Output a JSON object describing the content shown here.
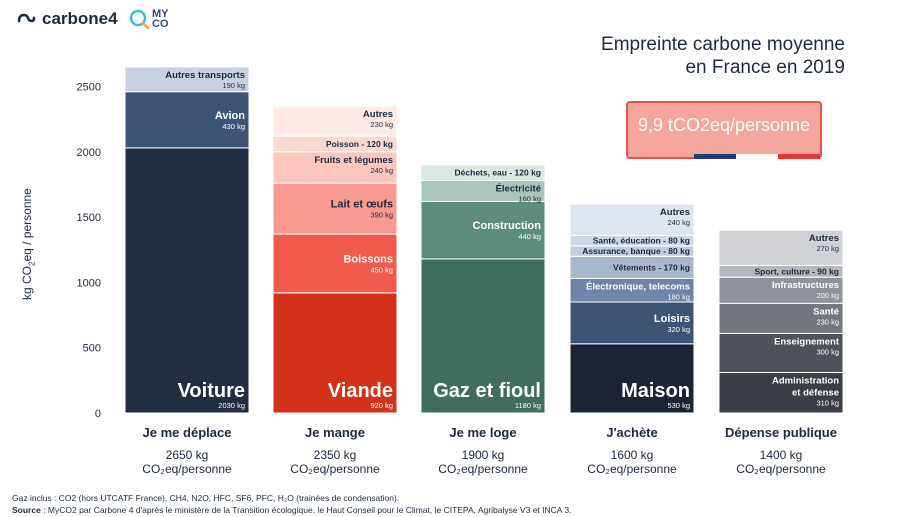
{
  "header": {
    "brand": "carbone4",
    "myco_line1": "MY",
    "myco_line2": "CO",
    "title_line1": "Empreinte carbone moyenne",
    "title_line2": "en France en 2019",
    "badge": "9,9 tCO2eq/personne"
  },
  "colors": {
    "accent_red": "#e8534a",
    "flag_blue": "#1f3b7a",
    "flag_white": "#ffffff",
    "flag_red": "#e8333b"
  },
  "footnotes": {
    "gaz": "Gaz inclus : CO2 (hors UTCATF France), CH4, N2O, HFC, SF6, PFC, H₂O (trainées de condensation).",
    "source_label": "Source",
    "source_text": " : MyCO2 par Carbone 4 d'après le ministère de la Transition écologique, le Haut Conseil pour le Climat, le CITEPA, Agribalyse V3 et INCA 3."
  },
  "chart_data": {
    "type": "bar",
    "stacked": true,
    "title": "Empreinte carbone moyenne en France en 2019",
    "ylabel": "kg CO2eq / personne",
    "ylim": [
      0,
      2650
    ],
    "yticks": [
      0,
      500,
      1000,
      1500,
      2000,
      2500
    ],
    "unit_label": "CO₂eq/personne",
    "categories": [
      {
        "name": "Je me déplace",
        "total_label": "2650 kg",
        "segments": [
          {
            "label": "Voiture",
            "value": 2030,
            "value_label": "2030 kg",
            "color": "#222d42",
            "big": true
          },
          {
            "label": "Avion",
            "value": 430,
            "value_label": "430 kg",
            "color": "#3e5476"
          },
          {
            "label": "Autres transports",
            "value": 190,
            "value_label": "190 kg",
            "color": "#c9d1df"
          }
        ]
      },
      {
        "name": "Je mange",
        "total_label": "2350 kg",
        "segments": [
          {
            "label": "Viande",
            "value": 920,
            "value_label": "920 kg",
            "color": "#d2321a",
            "big": true
          },
          {
            "label": "Boissons",
            "value": 450,
            "value_label": "450 kg",
            "color": "#f05a4b"
          },
          {
            "label": "Lait et œufs",
            "value": 390,
            "value_label": "390 kg",
            "color": "#f89a8f"
          },
          {
            "label": "Fruits et légumes",
            "value": 240,
            "value_label": "240 kg",
            "color": "#fbc6bd"
          },
          {
            "label": "Poisson - 120 kg",
            "value": 120,
            "value_label": "",
            "color": "#fbd9d3"
          },
          {
            "label": "Autres",
            "value": 230,
            "value_label": "230 kg",
            "color": "#fdeae6"
          }
        ]
      },
      {
        "name": "Je me loge",
        "total_label": "1900 kg",
        "segments": [
          {
            "label": "Gaz et fioul",
            "value": 1180,
            "value_label": "1180 kg",
            "color": "#3f6d5f",
            "big": true
          },
          {
            "label": "Construction",
            "value": 440,
            "value_label": "440 kg",
            "color": "#5b8c7e"
          },
          {
            "label": "Électricité",
            "value": 160,
            "value_label": "160 kg",
            "color": "#a9c4ba"
          },
          {
            "label": "Déchets, eau - 120 kg",
            "value": 120,
            "value_label": "",
            "color": "#dbe8e2"
          }
        ]
      },
      {
        "name": "J'achète",
        "total_label": "1600 kg",
        "segments": [
          {
            "label": "Maison",
            "value": 530,
            "value_label": "530 kg",
            "color": "#1c2434",
            "big": true
          },
          {
            "label": "Loisirs",
            "value": 320,
            "value_label": "320 kg",
            "color": "#3e5476"
          },
          {
            "label": "Électronique, telecoms",
            "value": 180,
            "value_label": "180 kg",
            "color": "#6f84a6"
          },
          {
            "label": "Vêtements - 170 kg",
            "value": 170,
            "value_label": "",
            "color": "#a9b7cd"
          },
          {
            "label": "Assurance, banque - 80 kg",
            "value": 80,
            "value_label": "",
            "color": "#c4cedd"
          },
          {
            "label": "Santé, éducation - 80 kg",
            "value": 80,
            "value_label": "",
            "color": "#cfd7e4"
          },
          {
            "label": "Autres",
            "value": 240,
            "value_label": "240 kg",
            "color": "#dfe5ee"
          }
        ]
      },
      {
        "name": "Dépense publique",
        "total_label": "1400 kg",
        "segments": [
          {
            "label": "Administration et défense",
            "value": 310,
            "value_label": "310 kg",
            "color": "#3a3d45"
          },
          {
            "label": "Enseignement",
            "value": 300,
            "value_label": "300 kg",
            "color": "#4d5159"
          },
          {
            "label": "Santé",
            "value": 230,
            "value_label": "230 kg",
            "color": "#72767e"
          },
          {
            "label": "Infrastructures",
            "value": 200,
            "value_label": "200 kg",
            "color": "#8e9299"
          },
          {
            "label": "Sport, culture - 90 kg",
            "value": 90,
            "value_label": "",
            "color": "#b4b7bc"
          },
          {
            "label": "Autres",
            "value": 270,
            "value_label": "270 kg",
            "color": "#d0d2d5"
          }
        ]
      }
    ]
  }
}
